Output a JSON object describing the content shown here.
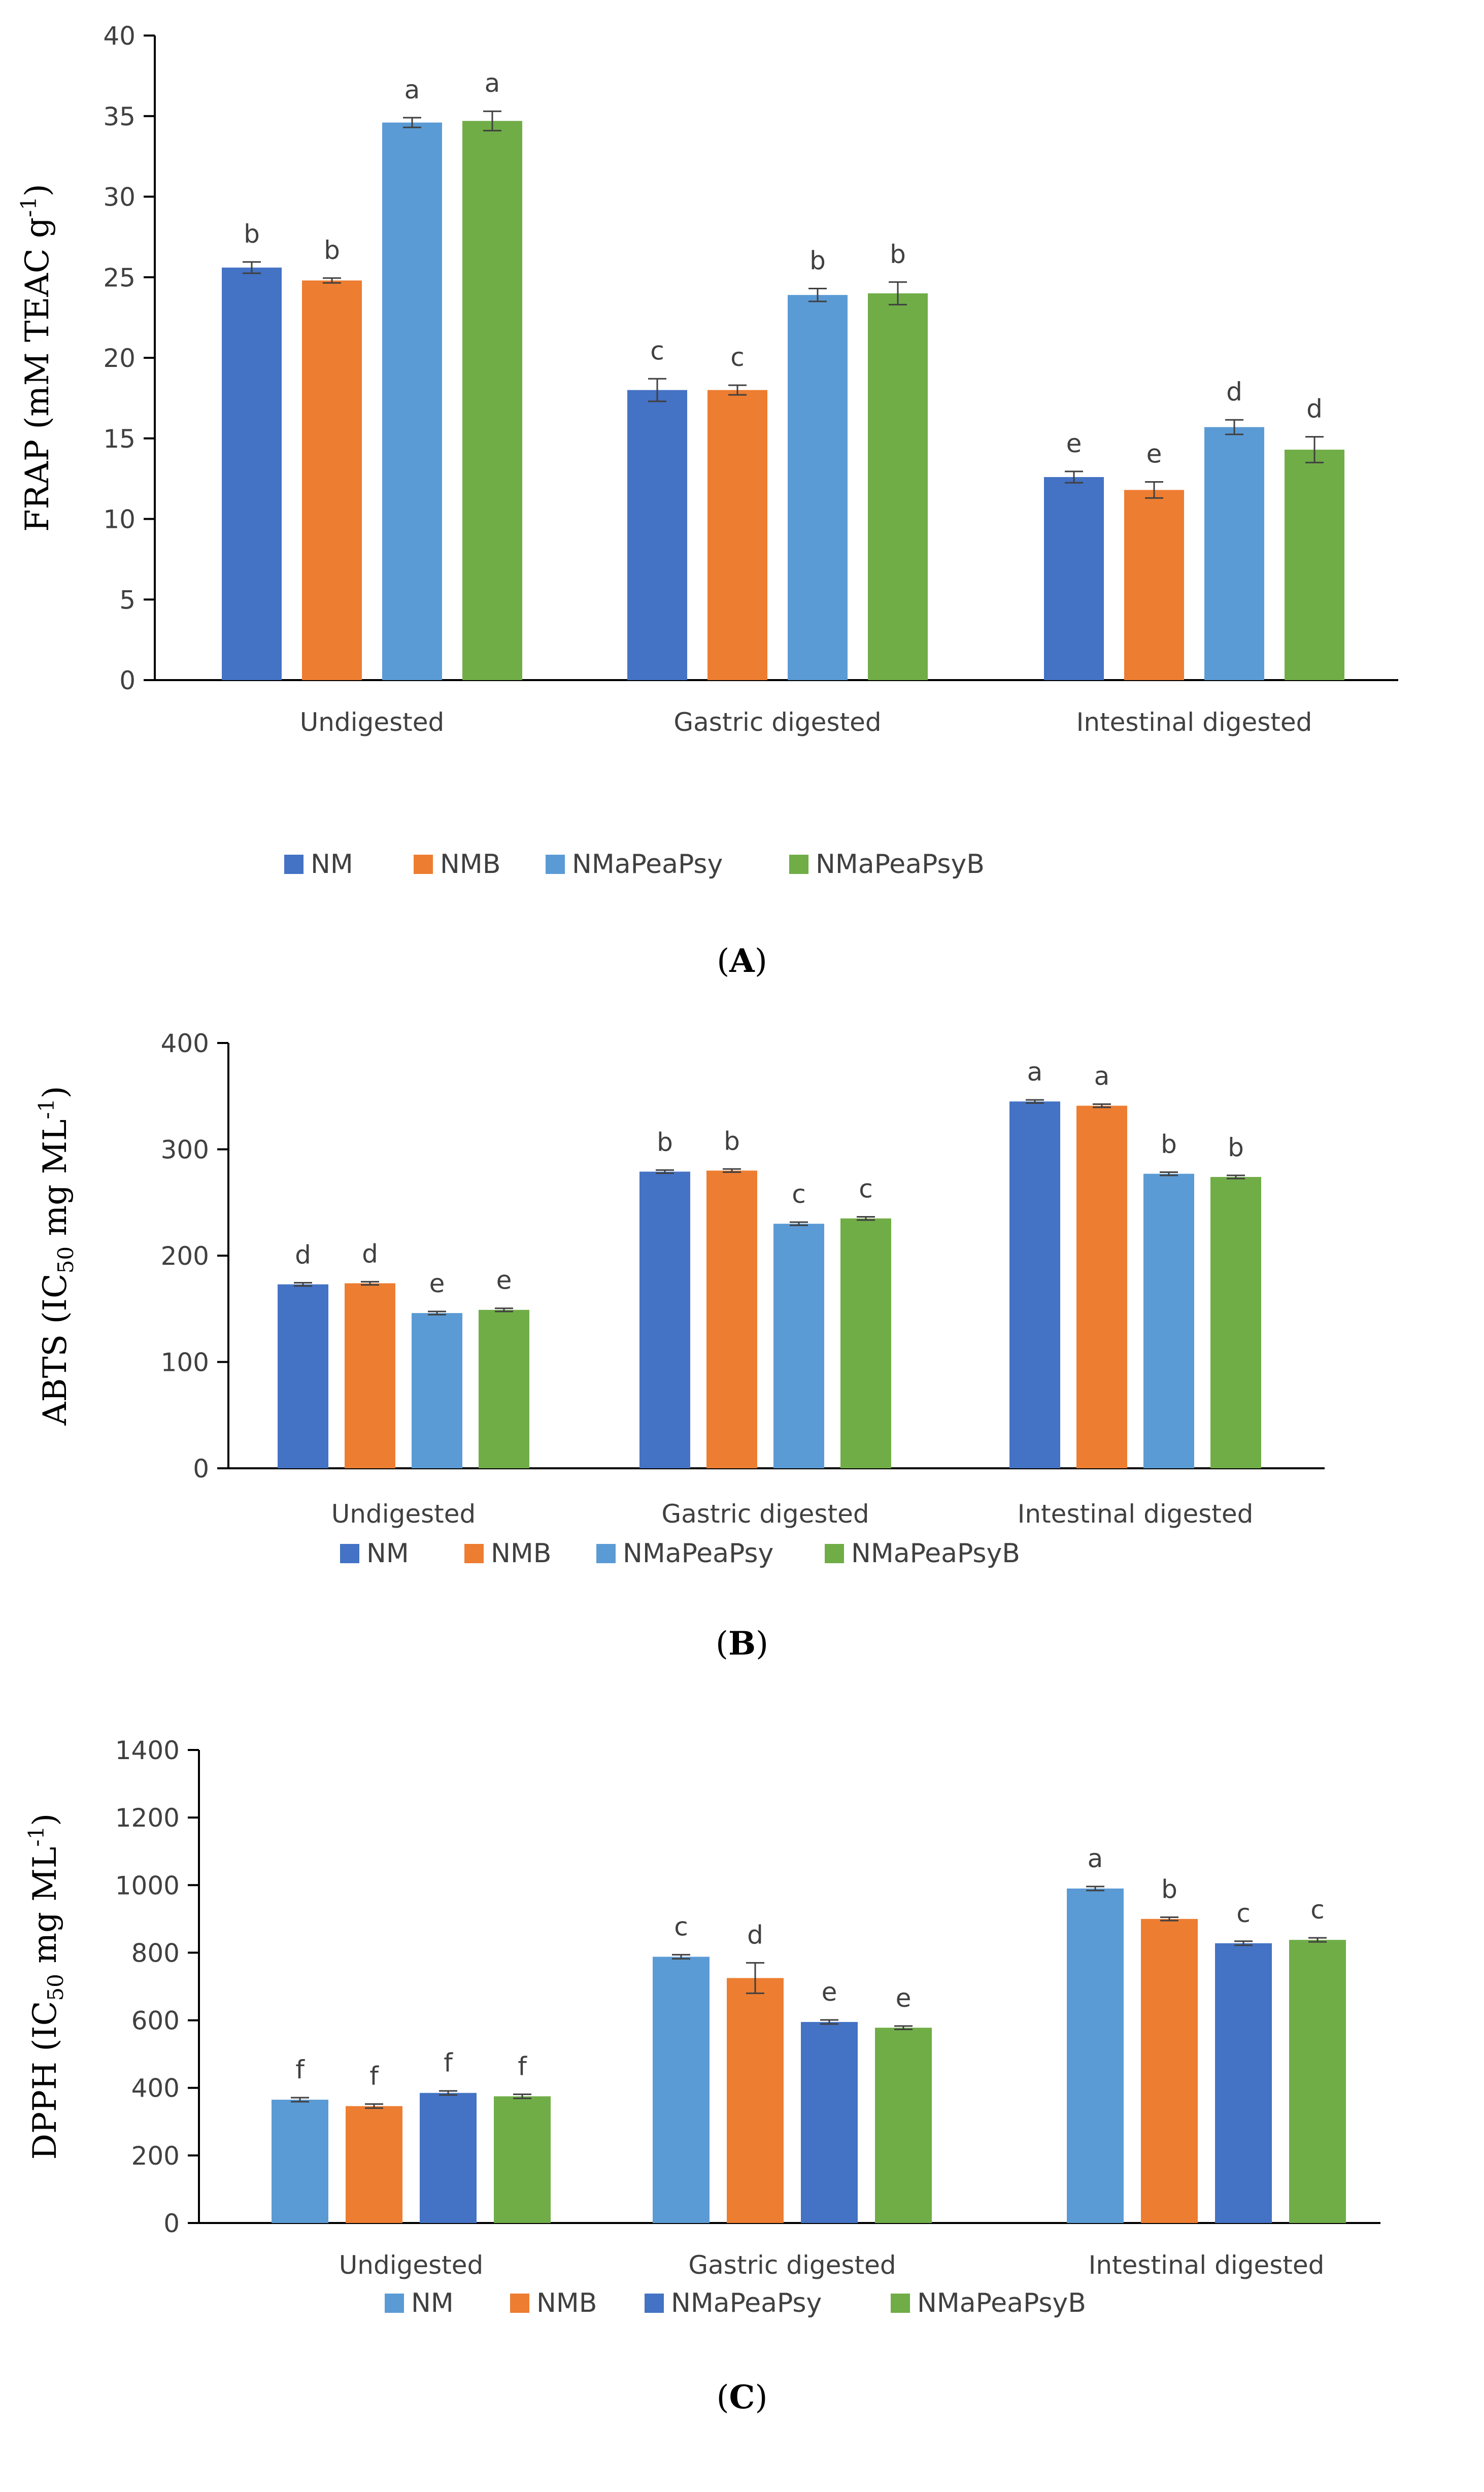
{
  "chart_data": [
    {
      "type": "bar",
      "panel_label": "(A)",
      "ylabel_main": "FRAP (mM TEAC g",
      "ylabel_sup": "-1",
      "ylabel_close": ")",
      "ylim": [
        0,
        40
      ],
      "yticks": [
        0,
        5,
        10,
        15,
        20,
        25,
        30,
        35,
        40
      ],
      "categories": [
        "Undigested",
        "Gastric digested",
        "Intestinal digested"
      ],
      "legend_position": "bottom",
      "series": [
        {
          "name": "NM",
          "color": "#4472C4",
          "values": [
            25.6,
            18.0,
            12.6
          ],
          "errors": [
            0.35,
            0.7,
            0.35
          ],
          "letters": [
            "b",
            "c",
            "e"
          ]
        },
        {
          "name": "NMB",
          "color": "#ED7D31",
          "values": [
            24.8,
            18.0,
            11.8
          ],
          "errors": [
            0.15,
            0.3,
            0.5
          ],
          "letters": [
            "b",
            "c",
            "e"
          ]
        },
        {
          "name": "NMaPeaPsy",
          "color": "#5B9BD5",
          "values": [
            34.6,
            23.9,
            15.7
          ],
          "errors": [
            0.3,
            0.4,
            0.45
          ],
          "letters": [
            "a",
            "b",
            "d"
          ]
        },
        {
          "name": "NMaPeaPsyB",
          "color": "#70AD47",
          "values": [
            34.7,
            24.0,
            14.3
          ],
          "errors": [
            0.6,
            0.7,
            0.8
          ],
          "letters": [
            "a",
            "b",
            "d"
          ]
        }
      ]
    },
    {
      "type": "bar",
      "panel_label": "(B)",
      "ylabel_main": "ABTS (IC",
      "ylabel_sub": "50",
      "ylabel_rest": " mg ML",
      "ylabel_sup": "-1",
      "ylabel_close": ")",
      "ylim": [
        0,
        400
      ],
      "yticks": [
        0,
        100,
        200,
        300,
        400
      ],
      "categories": [
        "Undigested",
        "Gastric digested",
        "Intestinal digested"
      ],
      "legend_position": "bottom",
      "series": [
        {
          "name": "NM",
          "color": "#4472C4",
          "values": [
            173,
            279,
            345
          ],
          "errors": [
            1.5,
            1.5,
            1.5
          ],
          "letters": [
            "d",
            "b",
            "a"
          ]
        },
        {
          "name": "NMB",
          "color": "#ED7D31",
          "values": [
            174,
            280,
            341
          ],
          "errors": [
            1.5,
            1.5,
            1.5
          ],
          "letters": [
            "d",
            "b",
            "a"
          ]
        },
        {
          "name": "NMaPeaPsy",
          "color": "#5B9BD5",
          "values": [
            146,
            230,
            277
          ],
          "errors": [
            1.5,
            1.5,
            1.5
          ],
          "letters": [
            "e",
            "c",
            "b"
          ]
        },
        {
          "name": "NMaPeaPsyB",
          "color": "#70AD47",
          "values": [
            149,
            235,
            274
          ],
          "errors": [
            1.5,
            1.5,
            1.5
          ],
          "letters": [
            "e",
            "c",
            "b"
          ]
        }
      ]
    },
    {
      "type": "bar",
      "panel_label": "(C)",
      "ylabel_main": "DPPH (IC",
      "ylabel_sub": "50",
      "ylabel_rest": " mg ML",
      "ylabel_sup": "-1",
      "ylabel_close": ")",
      "ylim": [
        0,
        1400
      ],
      "yticks": [
        0,
        200,
        400,
        600,
        800,
        1000,
        1200,
        1400
      ],
      "categories": [
        "Undigested",
        "Gastric digested",
        "Intestinal digested"
      ],
      "legend_position": "bottom",
      "series": [
        {
          "name": "NM",
          "color": "#5B9BD5",
          "values": [
            365,
            788,
            990
          ],
          "errors": [
            6,
            6,
            6
          ],
          "letters": [
            "f",
            "c",
            "a"
          ]
        },
        {
          "name": "NMB",
          "color": "#ED7D31",
          "values": [
            346,
            725,
            900
          ],
          "errors": [
            6,
            45,
            5
          ],
          "letters": [
            "f",
            "d",
            "b"
          ]
        },
        {
          "name": "NMaPeaPsy",
          "color": "#4472C4",
          "values": [
            385,
            595,
            828
          ],
          "errors": [
            6,
            6,
            6
          ],
          "letters": [
            "f",
            "e",
            "c"
          ]
        },
        {
          "name": "NMaPeaPsyB",
          "color": "#70AD47",
          "values": [
            375,
            578,
            838
          ],
          "errors": [
            6,
            5,
            6
          ],
          "letters": [
            "f",
            "e",
            "c"
          ]
        }
      ]
    }
  ]
}
